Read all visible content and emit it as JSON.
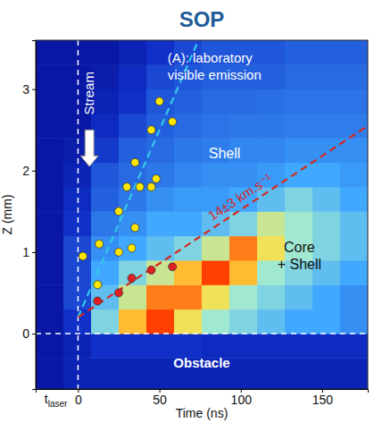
{
  "chart_data": {
    "type": "scatter",
    "title": "SOP",
    "x_label": "Time (ns)",
    "y_label": "Z (mm)",
    "xlim": [
      -26,
      178
    ],
    "ylim": [
      -0.68,
      3.6
    ],
    "xticks": [
      0,
      50,
      100,
      150
    ],
    "yticks": [
      0,
      1,
      2,
      3
    ],
    "vlines": [
      0
    ],
    "hlines": [
      0
    ],
    "annotations": {
      "panel": [
        "(A): laboratory",
        "visible emission"
      ],
      "stream": "Stream",
      "shell": "Shell",
      "core_shell": [
        "Core",
        "+ Shell"
      ],
      "obstacle": "Obstacle",
      "t_laser": {
        "base": "t",
        "sub": "laser"
      }
    },
    "series": [
      {
        "type": "line",
        "color": "#33c8e8",
        "line_style": "dashed",
        "x": [
          0,
          74
        ],
        "values": [
          0.2,
          3.6
        ]
      },
      {
        "type": "line",
        "color": "#d42a1e",
        "line_style": "dashed",
        "x": [
          0,
          178
        ],
        "values": [
          0.2,
          2.55
        ],
        "label": "14±3 km.s⁻¹"
      },
      {
        "type": "scatter",
        "color": "#ffe800",
        "marker": "circle",
        "x": [
          3,
          12,
          13,
          25,
          25,
          30,
          33,
          35,
          35,
          38,
          45,
          45,
          48,
          50,
          58
        ],
        "values": [
          0.95,
          0.6,
          1.1,
          1.0,
          1.5,
          1.8,
          1.05,
          1.3,
          2.1,
          1.8,
          1.8,
          2.5,
          1.9,
          2.85,
          2.6
        ]
      },
      {
        "type": "scatter",
        "color": "#e02020",
        "marker": "circle",
        "x": [
          12,
          25,
          33,
          45,
          58
        ],
        "values": [
          0.4,
          0.5,
          0.68,
          0.78,
          0.82
        ]
      }
    ],
    "heatmap": {
      "x_edges": [
        -26,
        -9,
        8,
        25,
        42,
        59,
        76,
        93,
        110,
        127,
        144,
        161,
        178
      ],
      "y_edges": [
        -0.68,
        -0.3,
        0,
        0.3,
        0.6,
        0.9,
        1.2,
        1.5,
        1.8,
        2.1,
        2.4,
        2.7,
        3.0,
        3.3,
        3.6
      ],
      "zlim": [
        0,
        1
      ],
      "values": [
        [
          0.1,
          0.15,
          0.15,
          0.15,
          0.15,
          0.15,
          0.15,
          0.15,
          0.15,
          0.15,
          0.15,
          0.15
        ],
        [
          0.1,
          0.15,
          0.2,
          0.2,
          0.2,
          0.2,
          0.18,
          0.18,
          0.18,
          0.18,
          0.18,
          0.18
        ],
        [
          0.1,
          0.2,
          0.55,
          0.75,
          0.85,
          0.7,
          0.6,
          0.55,
          0.5,
          0.45,
          0.45,
          0.4
        ],
        [
          0.1,
          0.25,
          0.5,
          0.65,
          0.8,
          0.8,
          0.7,
          0.6,
          0.55,
          0.5,
          0.45,
          0.4
        ],
        [
          0.1,
          0.25,
          0.45,
          0.55,
          0.65,
          0.75,
          0.85,
          0.75,
          0.6,
          0.55,
          0.5,
          0.45
        ],
        [
          0.1,
          0.25,
          0.4,
          0.45,
          0.5,
          0.55,
          0.65,
          0.8,
          0.7,
          0.6,
          0.55,
          0.5
        ],
        [
          0.1,
          0.2,
          0.35,
          0.4,
          0.45,
          0.45,
          0.5,
          0.55,
          0.65,
          0.6,
          0.55,
          0.5
        ],
        [
          0.1,
          0.18,
          0.3,
          0.35,
          0.4,
          0.42,
          0.42,
          0.45,
          0.5,
          0.55,
          0.5,
          0.45
        ],
        [
          0.1,
          0.15,
          0.28,
          0.32,
          0.35,
          0.38,
          0.4,
          0.4,
          0.42,
          0.45,
          0.45,
          0.42
        ],
        [
          0.1,
          0.12,
          0.22,
          0.3,
          0.32,
          0.35,
          0.36,
          0.38,
          0.38,
          0.4,
          0.4,
          0.4
        ],
        [
          0.1,
          0.1,
          0.18,
          0.25,
          0.3,
          0.32,
          0.34,
          0.35,
          0.35,
          0.36,
          0.36,
          0.36
        ],
        [
          0.1,
          0.1,
          0.15,
          0.2,
          0.28,
          0.3,
          0.32,
          0.32,
          0.33,
          0.34,
          0.34,
          0.34
        ],
        [
          0.1,
          0.1,
          0.12,
          0.18,
          0.25,
          0.28,
          0.3,
          0.3,
          0.3,
          0.32,
          0.32,
          0.32
        ],
        [
          0.1,
          0.1,
          0.1,
          0.15,
          0.2,
          0.25,
          0.28,
          0.28,
          0.28,
          0.3,
          0.3,
          0.3
        ]
      ]
    }
  }
}
